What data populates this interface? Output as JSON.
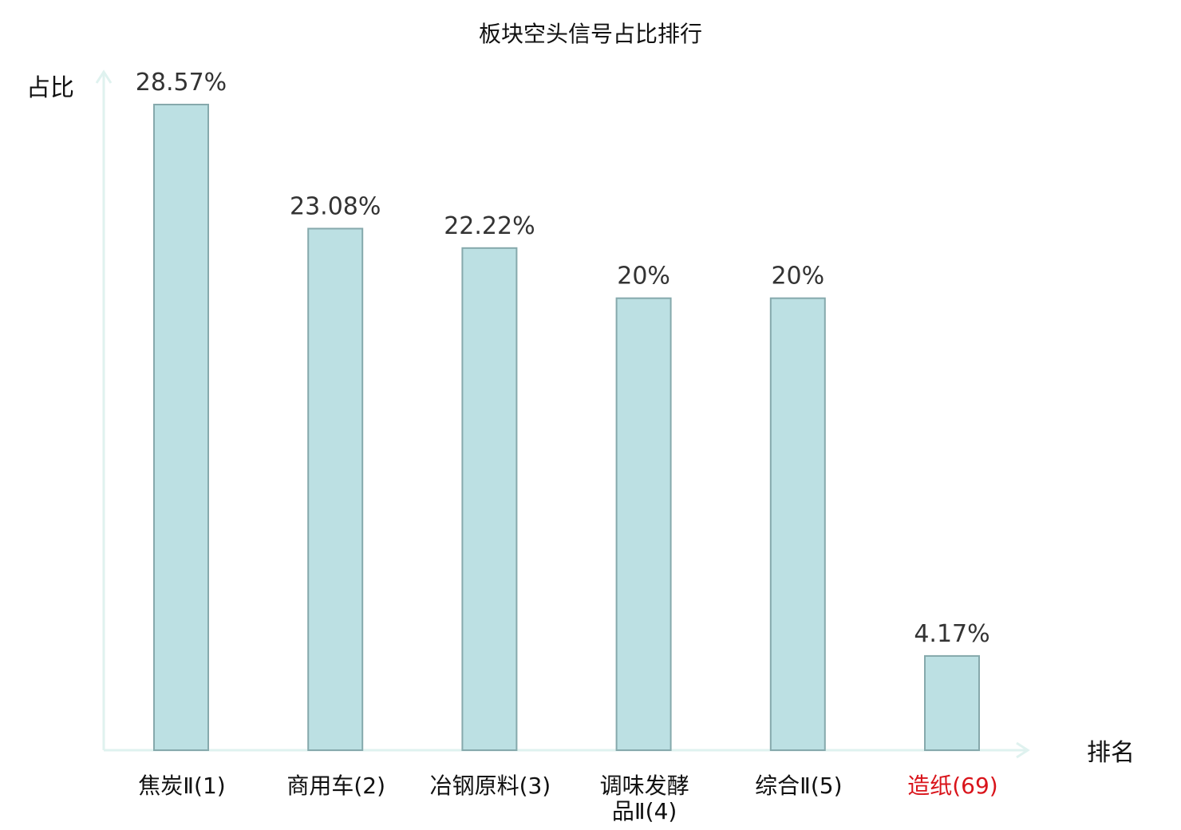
{
  "chart_data": {
    "type": "bar",
    "title": "板块空头信号占比排行",
    "ylabel": "占比",
    "xlabel": "排名",
    "categories": [
      [
        "焦炭Ⅱ(1)"
      ],
      [
        "商用车(2)"
      ],
      [
        "冶钢原料(3)"
      ],
      [
        "调味发酵",
        "品Ⅱ(4)"
      ],
      [
        "综合Ⅱ(5)"
      ],
      [
        "造纸(69)"
      ]
    ],
    "values": [
      28.57,
      23.08,
      22.22,
      20,
      20,
      4.17
    ],
    "value_labels": [
      "28.57%",
      "23.08%",
      "22.22%",
      "20%",
      "20%",
      "4.17%"
    ],
    "highlight_index": 5,
    "ylim": [
      0,
      30
    ],
    "grid": false,
    "colors": {
      "bar_fill": "#bce0e3",
      "bar_stroke": "#86a9ac",
      "axis": "#dff2ef",
      "highlight_text": "#d9141b"
    }
  }
}
